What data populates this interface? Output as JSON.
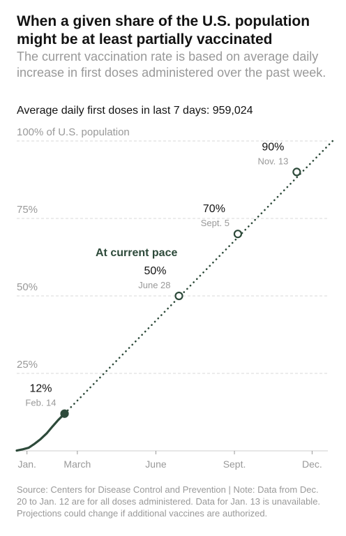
{
  "header": {
    "title": "When a given share of the U.S. population might be at least partially vaccinated",
    "subtitle": "The current vaccination rate is based on average daily increase in first doses administered over the past week.",
    "average_line": "Average daily first doses in last 7 days: 959,024"
  },
  "footer": {
    "source": "Source: Centers for Disease Control and Prevention | Note: Data from Dec. 20 to Jan. 12 are for all doses administered. Data for Jan. 13 is unavailable. Projections could change if additional vaccines are authorized."
  },
  "colors": {
    "line": "#2d4a3a",
    "grid": "#d9d9d9",
    "axis": "#999999"
  },
  "chart_data": {
    "type": "line",
    "ylim": [
      0,
      100
    ],
    "y_ticks": [
      {
        "value": 100,
        "label": "100% of U.S. population"
      },
      {
        "value": 75,
        "label": "75%"
      },
      {
        "value": 50,
        "label": "50%"
      },
      {
        "value": 25,
        "label": "25%"
      }
    ],
    "x_range": [
      "2020-12-20",
      "2021-12-26"
    ],
    "x_ticks": [
      {
        "date": "2021-01-01",
        "label": "Jan."
      },
      {
        "date": "2021-03-01",
        "label": "March"
      },
      {
        "date": "2021-06-01",
        "label": "June"
      },
      {
        "date": "2021-09-01",
        "label": "Sept."
      },
      {
        "date": "2021-12-01",
        "label": "Dec."
      }
    ],
    "series": [
      {
        "style": "solid",
        "points": [
          {
            "date": "2020-12-20",
            "y": 0.1
          },
          {
            "date": "2020-12-27",
            "y": 0.5
          },
          {
            "date": "2021-01-03",
            "y": 1.0
          },
          {
            "date": "2021-01-10",
            "y": 2.3
          },
          {
            "date": "2021-01-17",
            "y": 3.8
          },
          {
            "date": "2021-01-24",
            "y": 5.6
          },
          {
            "date": "2021-01-31",
            "y": 7.9
          },
          {
            "date": "2021-02-07",
            "y": 10.1
          },
          {
            "date": "2021-02-14",
            "y": 12.0
          }
        ]
      },
      {
        "name": "At current pace",
        "style": "dotted",
        "points": [
          {
            "date": "2021-02-14",
            "y": 12.0
          },
          {
            "date": "2021-12-25",
            "y": 100
          }
        ]
      }
    ],
    "annotations": [
      {
        "date": "2021-02-14",
        "y": 12,
        "value_label": "12%",
        "date_label": "Feb. 14",
        "marker": "filled"
      },
      {
        "date": "2021-06-28",
        "y": 50,
        "value_label": "50%",
        "date_label": "June 28",
        "marker": "open"
      },
      {
        "date": "2021-09-05",
        "y": 70,
        "value_label": "70%",
        "date_label": "Sept. 5",
        "marker": "open"
      },
      {
        "date": "2021-11-13",
        "y": 90,
        "value_label": "90%",
        "date_label": "Nov. 13",
        "marker": "open"
      }
    ],
    "pace_label": "At current pace",
    "grid": true
  }
}
